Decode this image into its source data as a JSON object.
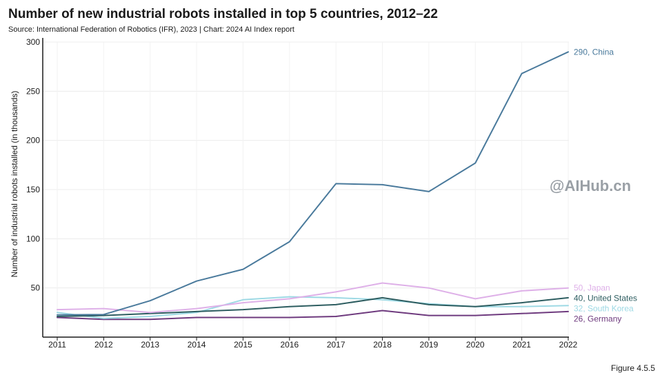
{
  "header": {
    "title": "Number of new industrial robots installed in top 5 countries, 2012–22",
    "subtitle": "Source: International Federation of Robotics (IFR), 2023 | Chart: 2024 AI Index report"
  },
  "watermark": "@AIHub.cn",
  "figure_label": "Figure 4.5.5",
  "chart_data": {
    "type": "line",
    "title": "Number of new industrial robots installed in top 5 countries, 2012–22",
    "xlabel": "",
    "ylabel": "Number of industrial robots installed (in thousands)",
    "x": [
      2011,
      2012,
      2013,
      2014,
      2015,
      2016,
      2017,
      2018,
      2019,
      2020,
      2021,
      2022
    ],
    "ylim": [
      0,
      300
    ],
    "yticks": [
      50,
      100,
      150,
      200,
      250,
      300
    ],
    "grid": true,
    "series": [
      {
        "name": "China",
        "end_label": "290, China",
        "color": "#4a7a9c",
        "values": [
          22.6,
          23,
          37,
          57,
          69,
          97,
          156,
          155,
          148,
          177,
          268,
          290
        ]
      },
      {
        "name": "Japan",
        "end_label": "50, Japan",
        "color": "#deb0e8",
        "values": [
          28,
          29,
          25,
          29,
          35,
          39,
          46,
          55,
          50,
          39,
          47,
          50
        ]
      },
      {
        "name": "United States",
        "end_label": "40, United States",
        "color": "#2d5d60",
        "values": [
          21,
          22,
          24,
          26,
          28,
          31,
          33,
          40,
          33,
          31,
          35,
          40
        ]
      },
      {
        "name": "South Korea",
        "end_label": "32, South Korea",
        "color": "#9dd9e4",
        "values": [
          25,
          19,
          21,
          25,
          38,
          41,
          40,
          38,
          34,
          31,
          31,
          32
        ]
      },
      {
        "name": "Germany",
        "end_label": "26, Germany",
        "color": "#6e3a7e",
        "values": [
          20,
          18,
          18,
          20,
          20,
          20,
          21,
          27,
          22,
          22,
          24,
          26
        ]
      }
    ]
  }
}
